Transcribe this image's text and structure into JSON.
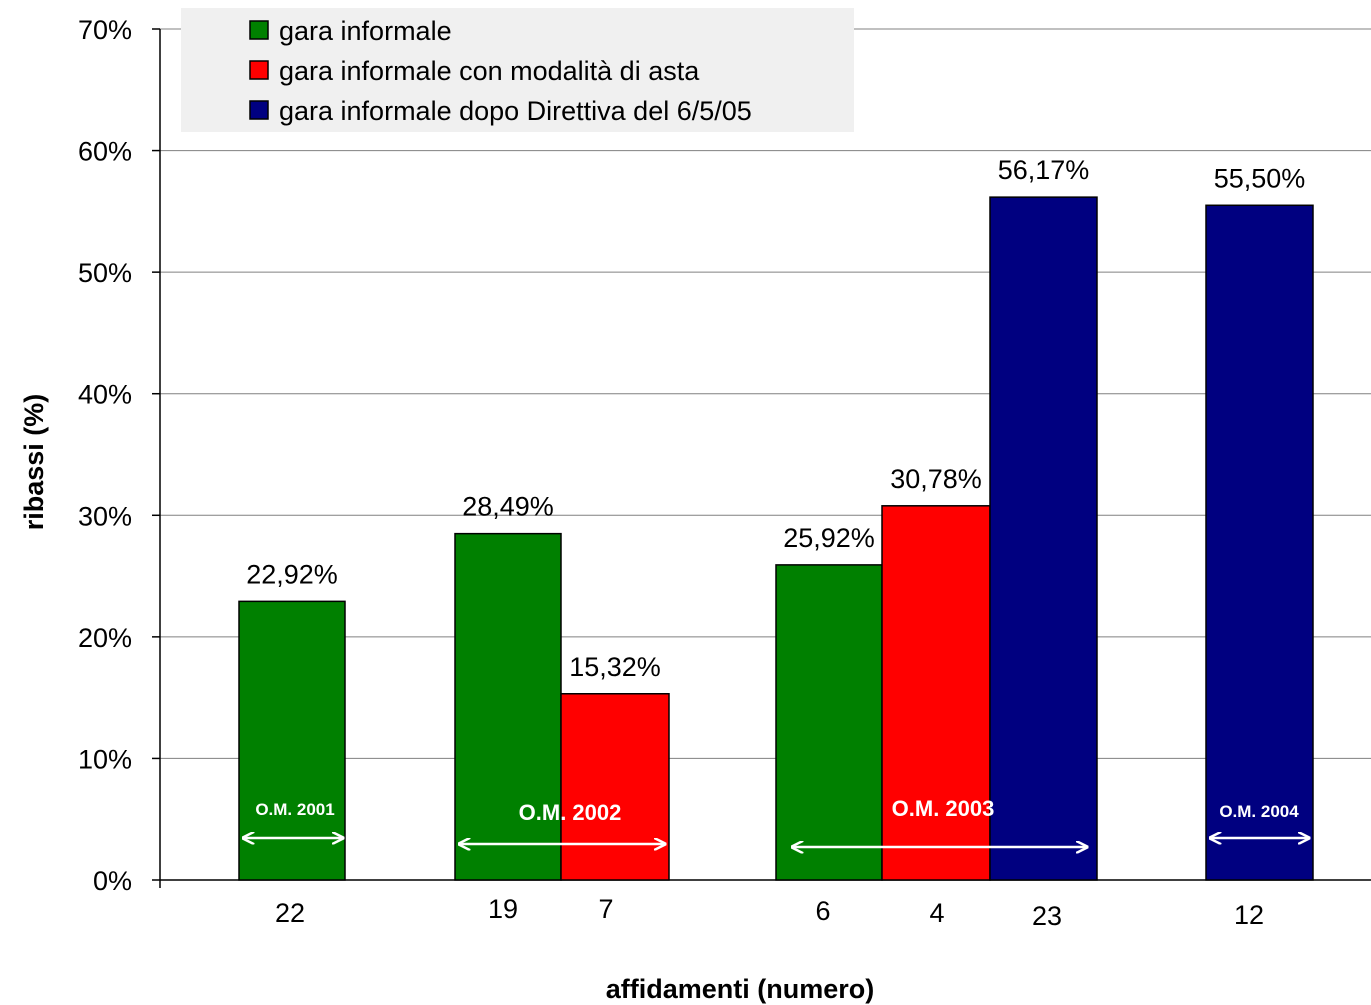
{
  "chart_data": {
    "type": "bar",
    "xlabel": "affidamenti (numero)",
    "ylabel": "ribassi (%)",
    "ylim": [
      0,
      70
    ],
    "yticks": [
      "0%",
      "10%",
      "20%",
      "30%",
      "40%",
      "50%",
      "60%",
      "70%"
    ],
    "grid": true,
    "legend_position": "top-left",
    "series": [
      {
        "name": "gara informale",
        "color": "#008000"
      },
      {
        "name": "gara informale con modalità di asta",
        "color": "#ff0000"
      },
      {
        "name": "gara informale dopo Direttiva del 6/5/05",
        "color": "#000080"
      }
    ],
    "bars": [
      {
        "group": "O.M. 2001",
        "series": "gara informale",
        "x_label": "22",
        "value": 22.92,
        "value_label": "22,92%"
      },
      {
        "group": "O.M. 2002",
        "series": "gara informale",
        "x_label": "19",
        "value": 28.49,
        "value_label": "28,49%"
      },
      {
        "group": "O.M. 2002",
        "series": "gara informale con modalità di asta",
        "x_label": "7",
        "value": 15.32,
        "value_label": "15,32%"
      },
      {
        "group": "O.M. 2003",
        "series": "gara informale",
        "x_label": "6",
        "value": 25.92,
        "value_label": "25,92%"
      },
      {
        "group": "O.M. 2003",
        "series": "gara informale con modalità di asta",
        "x_label": "4",
        "value": 30.78,
        "value_label": "30,78%"
      },
      {
        "group": "O.M. 2003",
        "series": "gara informale dopo Direttiva del 6/5/05",
        "x_label": "23",
        "value": 56.17,
        "value_label": "56,17%"
      },
      {
        "group": "O.M. 2004",
        "series": "gara informale dopo Direttiva del 6/5/05",
        "x_label": "12",
        "value": 55.5,
        "value_label": "55,50%"
      }
    ],
    "annotations": [
      "O.M. 2001",
      "O.M. 2002",
      "O.M. 2003",
      "O.M. 2004"
    ]
  }
}
